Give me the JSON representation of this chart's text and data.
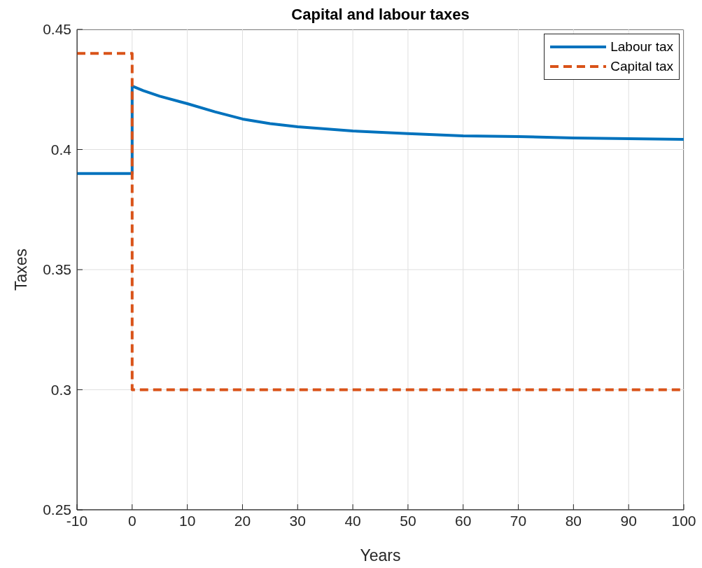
{
  "chart_data": {
    "type": "line",
    "title": "Capital and labour taxes",
    "xlabel": "Years",
    "ylabel": "Taxes",
    "series": [
      {
        "name": "Labour tax",
        "color": "#0072bd",
        "line_style": "solid",
        "x": [
          -10,
          0,
          0,
          2,
          5,
          10,
          15,
          20,
          25,
          30,
          40,
          50,
          60,
          70,
          80,
          90,
          100
        ],
        "values": [
          0.39,
          0.39,
          0.4264,
          0.4245,
          0.4222,
          0.4191,
          0.4157,
          0.4127,
          0.4108,
          0.4095,
          0.4077,
          0.4066,
          0.4057,
          0.4054,
          0.4048,
          0.4045,
          0.4042
        ]
      },
      {
        "name": "Capital tax",
        "color": "#d95319",
        "line_style": "dashed",
        "x": [
          -10,
          0,
          0,
          100
        ],
        "values": [
          0.44,
          0.44,
          0.3,
          0.3
        ]
      }
    ],
    "xlim": [
      -10,
      100
    ],
    "xticks": [
      -10,
      0,
      10,
      20,
      30,
      40,
      50,
      60,
      70,
      80,
      90,
      100
    ],
    "ylim": [
      0.25,
      0.45
    ],
    "yticks": [
      0.25,
      0.3,
      0.35,
      0.4,
      0.45
    ],
    "grid": true,
    "legend": "top right",
    "marker": "none"
  }
}
